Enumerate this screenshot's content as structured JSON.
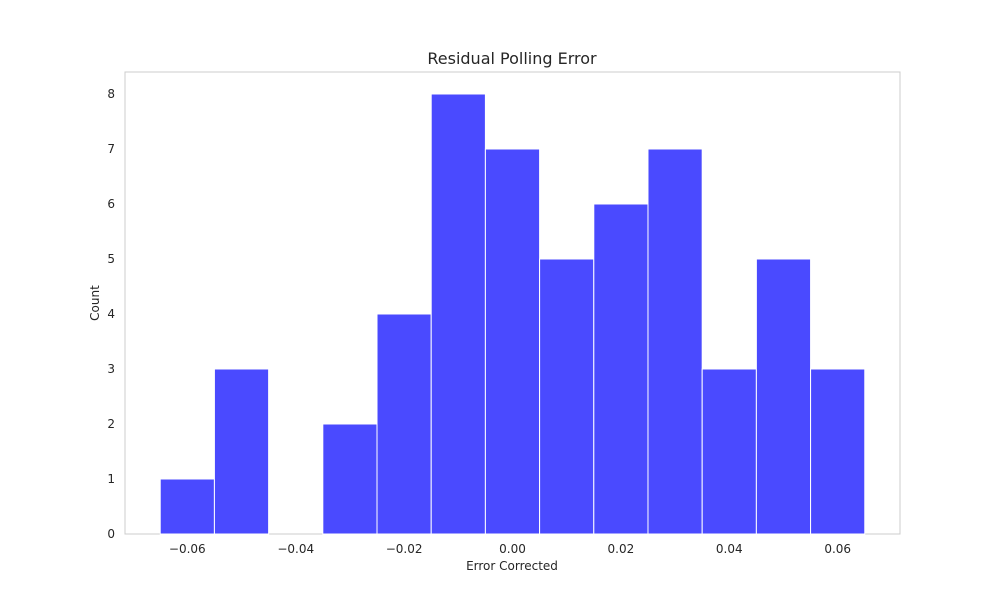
{
  "chart_data": {
    "type": "bar",
    "title": "Residual Polling Error",
    "xlabel": "Error Corrected",
    "ylabel": "Count",
    "bin_edges": [
      -0.065,
      -0.055,
      -0.045,
      -0.035,
      -0.025,
      -0.015,
      -0.005,
      0.005,
      0.015,
      0.025,
      0.035,
      0.045,
      0.055,
      0.065
    ],
    "values": [
      1,
      3,
      0,
      2,
      4,
      8,
      7,
      5,
      6,
      7,
      3,
      5,
      3
    ],
    "xlim": [
      -0.0715,
      0.0715
    ],
    "ylim": [
      0,
      8.4
    ],
    "xticks": [
      -0.06,
      -0.04,
      -0.02,
      0.0,
      0.02,
      0.04,
      0.06
    ],
    "xtick_labels": [
      "−0.06",
      "−0.04",
      "−0.02",
      "0.00",
      "0.02",
      "0.04",
      "0.06"
    ],
    "yticks": [
      0,
      1,
      2,
      3,
      4,
      5,
      6,
      7,
      8
    ],
    "ytick_labels": [
      "0",
      "1",
      "2",
      "3",
      "4",
      "5",
      "6",
      "7",
      "8"
    ],
    "grid": false,
    "bar_color": "#4a4aff"
  }
}
